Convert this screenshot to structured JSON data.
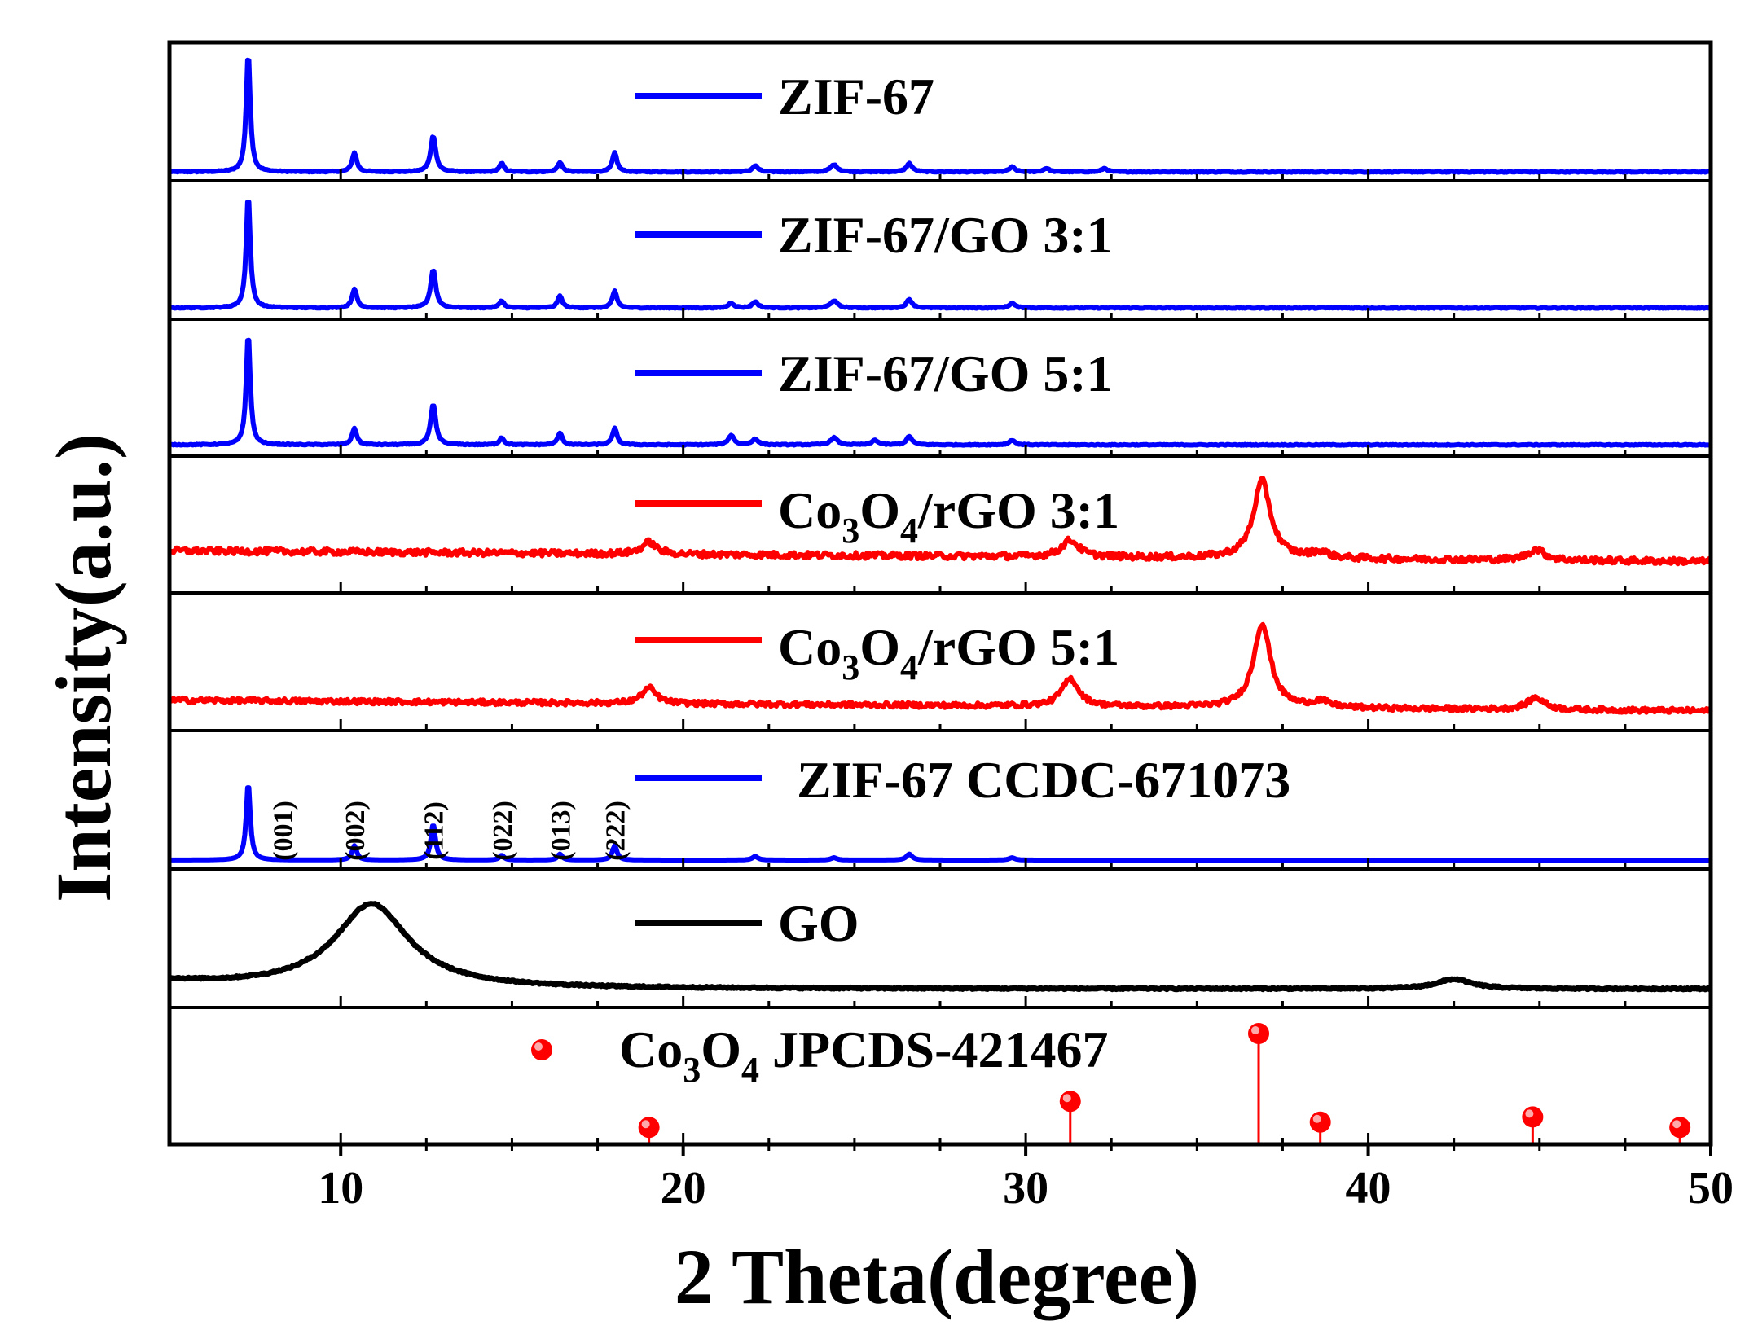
{
  "chart_data": {
    "type": "line",
    "title": "",
    "xlabel": "2 Theta(degree)",
    "ylabel": "Intensity(a.u.)",
    "xlim": [
      5,
      50
    ],
    "xticks": [
      10,
      20,
      30,
      40,
      50
    ],
    "colors": {
      "blue": "#0000ff",
      "red": "#ff0000",
      "black": "#000000"
    },
    "panels": [
      {
        "name": "ZIF-67",
        "legend": {
          "text": "ZIF-67"
        },
        "color": "#0000ff",
        "style": "line",
        "baseline": 0.02,
        "noise": 0.004,
        "peaks": [
          [
            7.3,
            1.0,
            0.07
          ],
          [
            10.4,
            0.16,
            0.08
          ],
          [
            12.7,
            0.3,
            0.09
          ],
          [
            14.7,
            0.07,
            0.08
          ],
          [
            16.4,
            0.08,
            0.08
          ],
          [
            18.0,
            0.16,
            0.08
          ],
          [
            22.1,
            0.05,
            0.1
          ],
          [
            24.4,
            0.06,
            0.12
          ],
          [
            26.6,
            0.07,
            0.1
          ],
          [
            29.6,
            0.04,
            0.1
          ],
          [
            30.6,
            0.03,
            0.1
          ],
          [
            32.3,
            0.03,
            0.1
          ]
        ]
      },
      {
        "name": "ZIF-67/GO 3:1",
        "legend": {
          "text": "ZIF-67/GO 3:1"
        },
        "color": "#0000ff",
        "style": "line",
        "baseline": 0.04,
        "noise": 0.004,
        "peaks": [
          [
            7.3,
            0.95,
            0.07
          ],
          [
            10.4,
            0.16,
            0.08
          ],
          [
            12.7,
            0.32,
            0.09
          ],
          [
            14.7,
            0.06,
            0.08
          ],
          [
            16.4,
            0.1,
            0.08
          ],
          [
            18.0,
            0.14,
            0.08
          ],
          [
            21.4,
            0.04,
            0.1
          ],
          [
            22.1,
            0.05,
            0.1
          ],
          [
            24.4,
            0.06,
            0.12
          ],
          [
            26.6,
            0.07,
            0.1
          ],
          [
            29.6,
            0.04,
            0.1
          ]
        ]
      },
      {
        "name": "ZIF-67/GO 5:1",
        "legend": {
          "text": "ZIF-67/GO 5:1"
        },
        "color": "#0000ff",
        "style": "line",
        "baseline": 0.04,
        "noise": 0.004,
        "peaks": [
          [
            7.3,
            0.95,
            0.07
          ],
          [
            10.4,
            0.14,
            0.08
          ],
          [
            12.7,
            0.34,
            0.09
          ],
          [
            14.7,
            0.06,
            0.08
          ],
          [
            16.4,
            0.1,
            0.08
          ],
          [
            18.0,
            0.14,
            0.08
          ],
          [
            21.4,
            0.08,
            0.1
          ],
          [
            22.1,
            0.05,
            0.1
          ],
          [
            24.4,
            0.06,
            0.12
          ],
          [
            25.6,
            0.04,
            0.1
          ],
          [
            26.6,
            0.07,
            0.1
          ],
          [
            29.6,
            0.04,
            0.1
          ]
        ]
      },
      {
        "name": "Co3O4/rGO 3:1",
        "legend": {
          "text": "Co3O4/rGO 3:1",
          "formula": {
            "pre": "Co",
            "s1": "3",
            "mid": "O",
            "s2": "4",
            "post": "/rGO 3:1"
          }
        },
        "color": "#ff0000",
        "style": "line",
        "baseline": 0.3,
        "noise": 0.025,
        "peaks": [
          [
            19.0,
            0.1,
            0.25
          ],
          [
            31.3,
            0.14,
            0.3
          ],
          [
            36.9,
            0.65,
            0.3
          ],
          [
            38.6,
            0.05,
            0.3
          ],
          [
            44.9,
            0.09,
            0.3
          ]
        ]
      },
      {
        "name": "Co3O4/rGO 5:1",
        "legend": {
          "text": "Co3O4/rGO 5:1",
          "formula": {
            "pre": "Co",
            "s1": "3",
            "mid": "O",
            "s2": "4",
            "post": "/rGO 5:1"
          }
        },
        "color": "#ff0000",
        "style": "line",
        "baseline": 0.2,
        "noise": 0.02,
        "peaks": [
          [
            19.0,
            0.13,
            0.25
          ],
          [
            31.3,
            0.23,
            0.3
          ],
          [
            36.9,
            0.7,
            0.3
          ],
          [
            38.6,
            0.05,
            0.3
          ],
          [
            44.9,
            0.1,
            0.3
          ]
        ]
      },
      {
        "name": "ZIF-67 CCDC-671073",
        "legend": {
          "text": "ZIF-67 CCDC-671073"
        },
        "color": "#0000ff",
        "style": "line",
        "baseline": 0.02,
        "noise": 0.0,
        "peaks": [
          [
            7.3,
            0.65,
            0.07
          ],
          [
            10.4,
            0.12,
            0.08
          ],
          [
            12.7,
            0.3,
            0.08
          ],
          [
            14.7,
            0.04,
            0.08
          ],
          [
            16.4,
            0.05,
            0.08
          ],
          [
            18.0,
            0.12,
            0.08
          ],
          [
            22.1,
            0.03,
            0.1
          ],
          [
            24.4,
            0.02,
            0.1
          ],
          [
            26.6,
            0.05,
            0.1
          ],
          [
            29.6,
            0.02,
            0.1
          ]
        ]
      },
      {
        "name": "GO",
        "legend": {
          "text": "GO"
        },
        "color": "#000000",
        "style": "go",
        "baseline": 0.1,
        "noise": 0.006,
        "peaks": [
          [
            10.9,
            0.7,
            1.3
          ],
          [
            42.5,
            0.08,
            0.6
          ]
        ]
      },
      {
        "name": "Co3O4 JPCDS-421467",
        "legend": {
          "text": "Co3O4 JPCDS-421467",
          "formula": {
            "pre": "Co",
            "s1": "3",
            "mid": "O",
            "s2": "4",
            "post": " JPCDS-421467"
          }
        },
        "color": "#ff0000",
        "style": "sticks",
        "sticks": [
          [
            19.0,
            0.1
          ],
          [
            31.3,
            0.35
          ],
          [
            36.8,
            1.0
          ],
          [
            38.6,
            0.15
          ],
          [
            44.8,
            0.2
          ],
          [
            49.1,
            0.1
          ]
        ]
      }
    ],
    "annotations": [
      {
        "text": "(001)",
        "x": 8.3
      },
      {
        "text": "(002)",
        "x": 10.4
      },
      {
        "text": "(112)",
        "x": 12.7
      },
      {
        "text": "(022)",
        "x": 14.7
      },
      {
        "text": "(013)",
        "x": 16.4
      },
      {
        "text": "(222)",
        "x": 18.0
      }
    ]
  }
}
